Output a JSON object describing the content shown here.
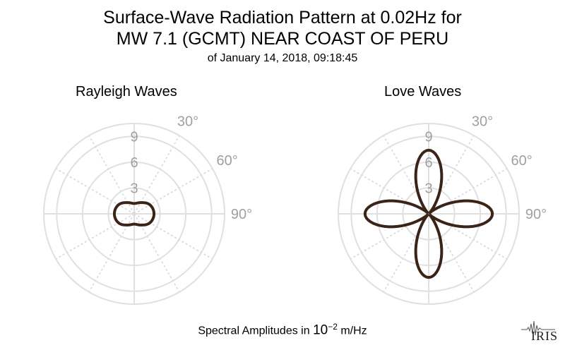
{
  "title": {
    "line1": "Surface-Wave Radiation Pattern at 0.02Hz for",
    "line2": "MW 7.1 (GCMT) NEAR COAST OF PERU",
    "line3": "of January 14, 2018, 09:18:45"
  },
  "footer": {
    "prefix": "Spectral Amplitudes in ",
    "base": "10",
    "exponent": "−2",
    "unit": " m/Hz"
  },
  "logo": {
    "text": "IRIS"
  },
  "colors": {
    "curve": "#3a2418",
    "grid": "#e0e0e0",
    "grid_dotted": "#d9d9d9",
    "tick_text": "#a0a0a0"
  },
  "chart_data": [
    {
      "type": "polar",
      "title": "Rayleigh Waves",
      "radial_range": [
        0,
        10.5
      ],
      "radial_ticks": [
        3,
        6,
        9
      ],
      "angle_tick_labels": [
        "30°",
        "60°",
        "90°"
      ],
      "angle_ticks": [
        30,
        60,
        90
      ],
      "grid": true,
      "pattern": "two-lobed (peanut), major axis east-west",
      "samples": {
        "azimuth_deg": [
          0,
          30,
          60,
          90,
          120,
          150,
          180,
          210,
          240,
          270,
          300,
          330
        ],
        "amplitude": [
          1.2,
          1.5,
          2.1,
          2.3,
          2.1,
          1.5,
          1.2,
          1.5,
          2.1,
          2.3,
          2.1,
          1.5
        ]
      }
    },
    {
      "type": "polar",
      "title": "Love Waves",
      "radial_range": [
        0,
        10.5
      ],
      "radial_ticks": [
        3,
        6,
        9
      ],
      "angle_tick_labels": [
        "30°",
        "60°",
        "90°"
      ],
      "angle_ticks": [
        30,
        60,
        90
      ],
      "grid": true,
      "pattern": "four-lobed (cloverleaf)",
      "samples": {
        "azimuth_deg": [
          0,
          45,
          90,
          135,
          180,
          225,
          270,
          315
        ],
        "amplitude": [
          7.4,
          0.2,
          7.4,
          0.2,
          7.4,
          0.2,
          7.4,
          0.2
        ]
      }
    }
  ]
}
